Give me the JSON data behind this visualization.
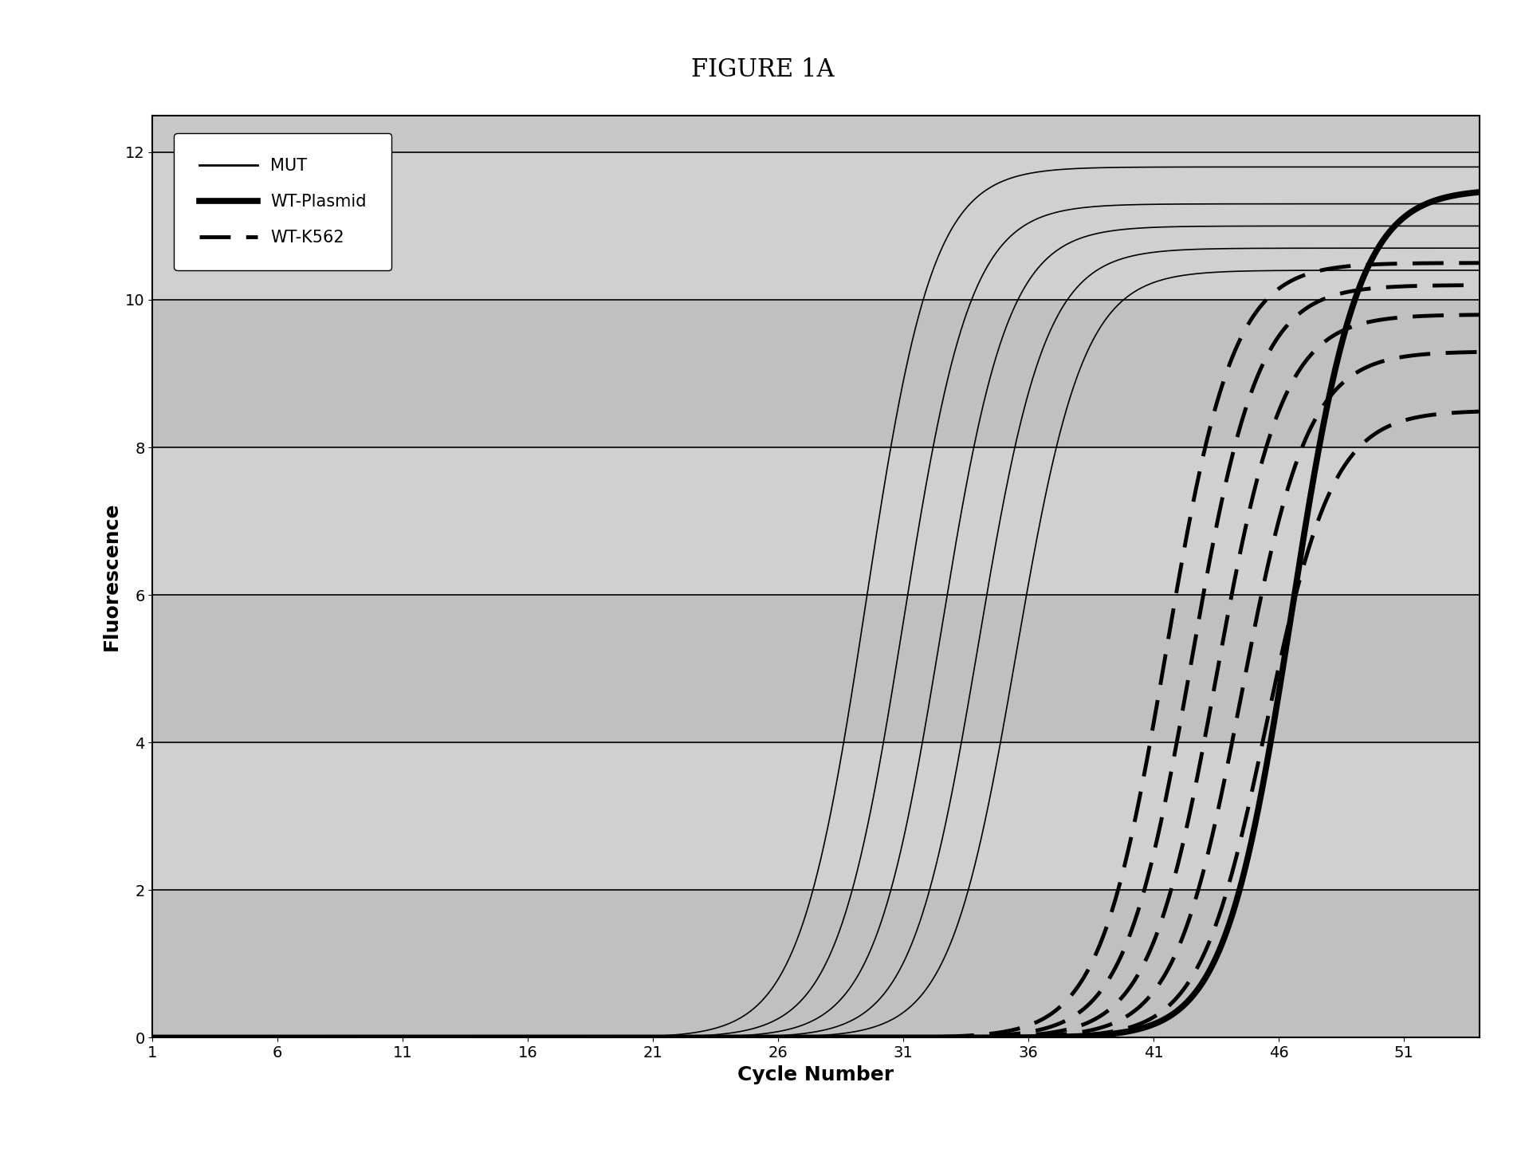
{
  "title": "FIGURE 1A",
  "xlabel": "Cycle Number",
  "ylabel": "Fluorescence",
  "xlim": [
    1,
    54
  ],
  "ylim": [
    0,
    12.5
  ],
  "xticks": [
    1,
    6,
    11,
    16,
    21,
    26,
    31,
    36,
    41,
    46,
    51
  ],
  "yticks": [
    0,
    2,
    4,
    6,
    8,
    10,
    12
  ],
  "bg_color": "#c8c8c8",
  "fig_bg": "#ffffff",
  "mut_curves": [
    {
      "midpoint": 29.5,
      "rate": 0.75,
      "ymax": 11.8
    },
    {
      "midpoint": 31.0,
      "rate": 0.75,
      "ymax": 11.3
    },
    {
      "midpoint": 32.5,
      "rate": 0.75,
      "ymax": 11.0
    },
    {
      "midpoint": 34.0,
      "rate": 0.75,
      "ymax": 10.7
    },
    {
      "midpoint": 35.5,
      "rate": 0.75,
      "ymax": 10.4
    }
  ],
  "wt_plasmid_curves": [
    {
      "midpoint": 46.5,
      "rate": 0.75,
      "ymax": 11.5
    }
  ],
  "wt_k562_curves": [
    {
      "midpoint": 41.5,
      "rate": 0.75,
      "ymax": 10.5
    },
    {
      "midpoint": 42.5,
      "rate": 0.75,
      "ymax": 10.2
    },
    {
      "midpoint": 43.5,
      "rate": 0.75,
      "ymax": 9.8
    },
    {
      "midpoint": 44.5,
      "rate": 0.75,
      "ymax": 9.3
    },
    {
      "midpoint": 45.5,
      "rate": 0.75,
      "ymax": 8.5
    }
  ]
}
